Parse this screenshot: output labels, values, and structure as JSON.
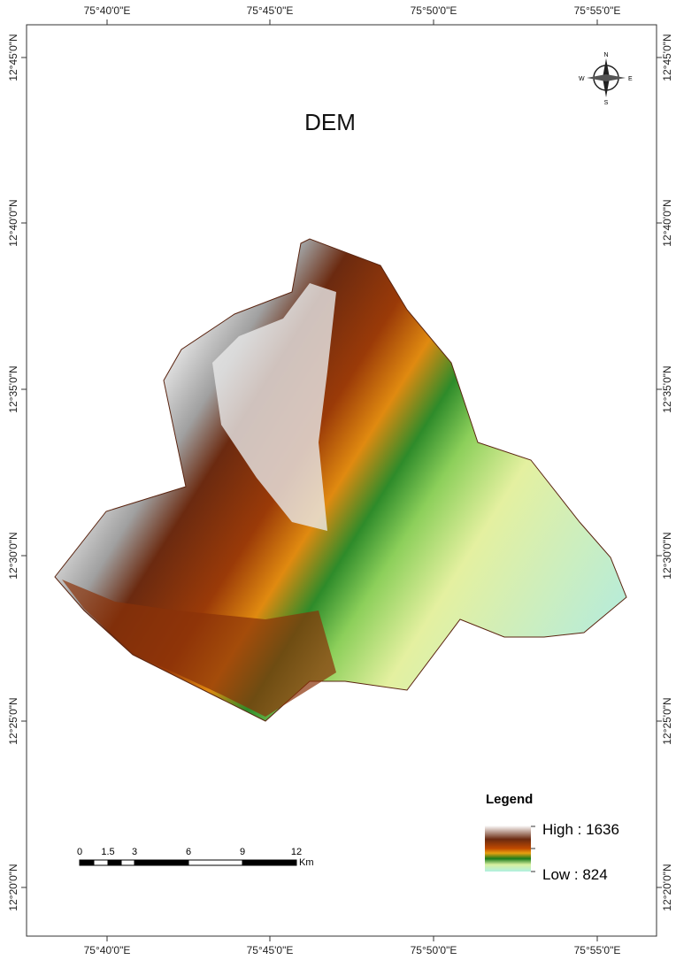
{
  "title": "DEM",
  "longitude_labels": [
    "75°40'0\"E",
    "75°45'0\"E",
    "75°50'0\"E",
    "75°55'0\"E"
  ],
  "latitude_labels": [
    "12°45'0\"N",
    "12°40'0\"N",
    "12°35'0\"N",
    "12°30'0\"N",
    "12°25'0\"N",
    "12°20'0\"N"
  ],
  "compass": {
    "n": "N",
    "s": "S",
    "e": "E",
    "w": "W"
  },
  "legend": {
    "title": "Legend",
    "high": "High : 1636",
    "low": "Low : 824"
  },
  "scale_bar": {
    "labels": [
      "0",
      "1.5",
      "3",
      "6",
      "9",
      "12"
    ],
    "unit": "Km"
  }
}
